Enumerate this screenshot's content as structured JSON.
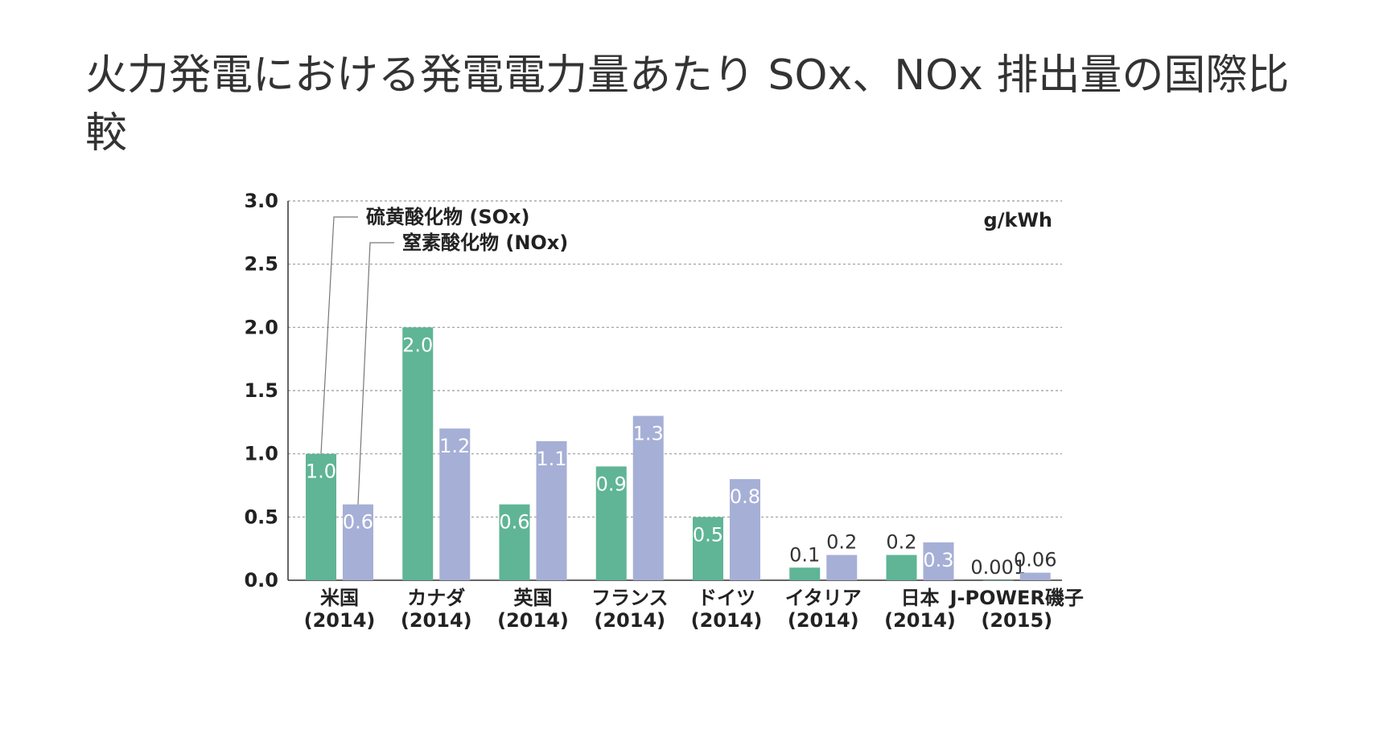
{
  "page": {
    "title": "火力発電における発電電力量あたり SOx、NOx 排出量の国際比較"
  },
  "chart_data": {
    "type": "bar",
    "unit": "g/kWh",
    "ylim": [
      0,
      3.0
    ],
    "yticks": [
      0.0,
      0.5,
      1.0,
      1.5,
      2.0,
      2.5,
      3.0
    ],
    "ytick_labels": [
      "0.0",
      "0.5",
      "1.0",
      "1.5",
      "2.0",
      "2.5",
      "3.0"
    ],
    "grid": true,
    "categories": [
      {
        "name": "米国",
        "year": "(2014)"
      },
      {
        "name": "カナダ",
        "year": "(2014)"
      },
      {
        "name": "英国",
        "year": "(2014)"
      },
      {
        "name": "フランス",
        "year": "(2014)"
      },
      {
        "name": "ドイツ",
        "year": "(2014)"
      },
      {
        "name": "イタリア",
        "year": "(2014)"
      },
      {
        "name": "日本",
        "year": "(2014)"
      },
      {
        "name": "J-POWER磯子",
        "year": "(2015)"
      }
    ],
    "series": [
      {
        "name": "硫黄酸化物 (SOx)",
        "color": "#5fb596",
        "values": [
          1.0,
          2.0,
          0.6,
          0.9,
          0.5,
          0.1,
          0.2,
          0.001
        ],
        "labels": [
          "1.0",
          "2.0",
          "0.6",
          "0.9",
          "0.5",
          "0.1",
          "0.2",
          "0.001"
        ]
      },
      {
        "name": "窒素酸化物 (NOx)",
        "color": "#a6afd6",
        "values": [
          0.6,
          1.2,
          1.1,
          1.3,
          0.8,
          0.2,
          0.3,
          0.06
        ],
        "labels": [
          "0.6",
          "1.2",
          "1.1",
          "1.3",
          "0.8",
          "0.2",
          "0.3",
          "0.06"
        ]
      }
    ]
  }
}
